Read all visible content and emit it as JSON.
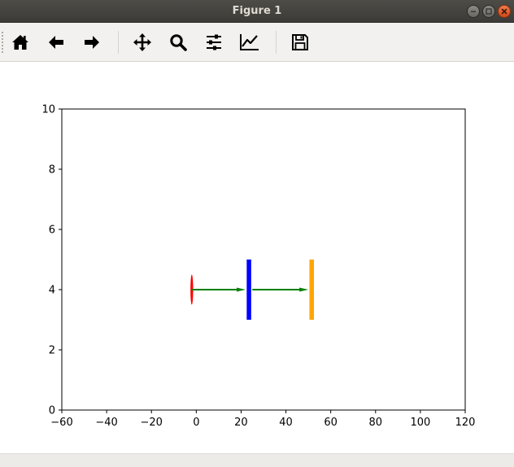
{
  "window": {
    "title": "Figure 1"
  },
  "toolbar": {
    "buttons": [
      {
        "icon": "home-icon",
        "label": "Home"
      },
      {
        "icon": "back-arrow-icon",
        "label": "Back"
      },
      {
        "icon": "forward-arrow-icon",
        "label": "Forward"
      },
      {
        "icon": "pan-move-icon",
        "label": "Pan"
      },
      {
        "icon": "zoom-magnifier-icon",
        "label": "Zoom"
      },
      {
        "icon": "configure-subplots-icon",
        "label": "Subplots"
      },
      {
        "icon": "edit-axis-curve-icon",
        "label": "Customize"
      },
      {
        "icon": "save-floppy-icon",
        "label": "Save"
      }
    ]
  },
  "chart_data": {
    "type": "scatter",
    "title": "",
    "xlabel": "",
    "ylabel": "",
    "xlim": [
      -60,
      120
    ],
    "ylim": [
      0,
      10
    ],
    "x_ticks": [
      "−60",
      "−40",
      "−20",
      "0",
      "20",
      "40",
      "60",
      "80",
      "100",
      "120"
    ],
    "x_tick_values": [
      -60,
      -40,
      -20,
      0,
      20,
      40,
      60,
      80,
      100,
      120
    ],
    "y_ticks": [
      "0",
      "2",
      "4",
      "6",
      "8",
      "10"
    ],
    "y_tick_values": [
      0,
      2,
      4,
      6,
      8,
      10
    ],
    "grid": false,
    "elements": [
      {
        "kind": "ellipse",
        "x": -2,
        "y": 4,
        "width": 1.2,
        "height": 1,
        "color": "#ff0000"
      },
      {
        "kind": "lens",
        "x": 23.5,
        "y": 4,
        "y_extent": [
          3,
          5
        ],
        "width": 2,
        "color": "#0000ff"
      },
      {
        "kind": "lens",
        "x": 51.5,
        "y": 4,
        "y_extent": [
          3,
          5
        ],
        "width": 2,
        "color": "#ffa500"
      },
      {
        "kind": "arrow",
        "x_start": -2,
        "x_end": 22,
        "y": 4,
        "color": "#008000"
      },
      {
        "kind": "arrow",
        "x_start": 25,
        "x_end": 50,
        "y": 4,
        "color": "#008000"
      }
    ]
  },
  "status": {
    "text": ""
  }
}
